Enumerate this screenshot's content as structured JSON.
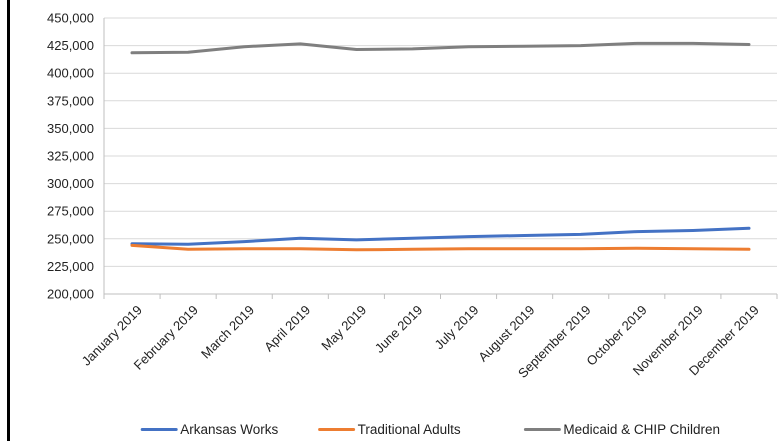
{
  "chart_data": {
    "type": "line",
    "title": "",
    "xlabel": "",
    "ylabel": "",
    "ylim": [
      200000,
      450000
    ],
    "ytick_step": 25000,
    "grid": "horizontal",
    "legend_position": "bottom",
    "categories": [
      "January 2019",
      "February 2019",
      "March 2019",
      "April 2019",
      "May 2019",
      "June 2019",
      "July 2019",
      "August 2019",
      "September 2019",
      "October 2019",
      "November 2019",
      "December 2019"
    ],
    "series": [
      {
        "name": "Arkansas Works",
        "color": "#4472C4",
        "values": [
          245500,
          245000,
          247500,
          250500,
          249000,
          250500,
          252000,
          253000,
          254000,
          256500,
          257500,
          259500
        ]
      },
      {
        "name": "Traditional Adults",
        "color": "#ED7D31",
        "values": [
          244000,
          240500,
          241000,
          241000,
          240000,
          240500,
          241000,
          241000,
          241000,
          241500,
          241000,
          240500
        ]
      },
      {
        "name": "Medicaid & CHIP Children",
        "color": "#7F7F7F",
        "values": [
          418500,
          419000,
          424000,
          426500,
          421500,
          422000,
          424000,
          424500,
          425000,
          427000,
          427000,
          426000
        ]
      }
    ]
  }
}
